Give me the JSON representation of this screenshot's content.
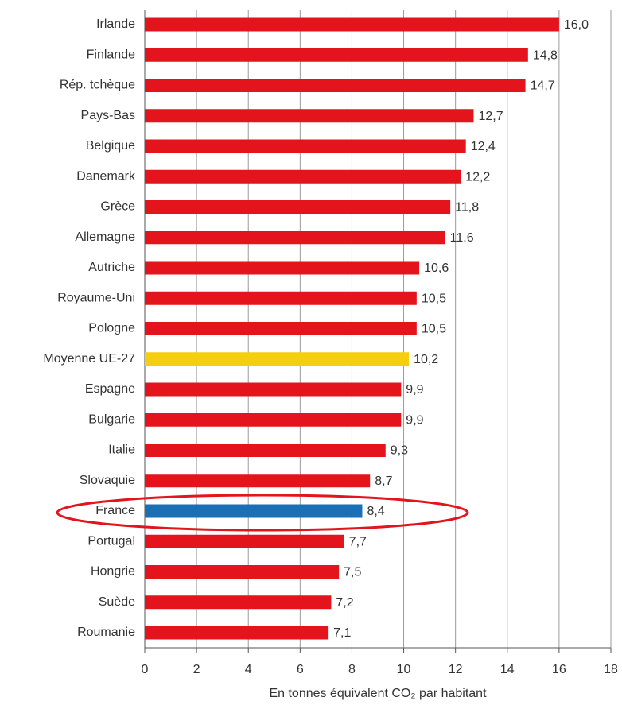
{
  "chart_data": {
    "type": "bar",
    "orientation": "horizontal",
    "xlabel": "En tonnes équivalent CO₂ par habitant",
    "categories": [
      "Irlande",
      "Finlande",
      "Rép. tchèque",
      "Pays-Bas",
      "Belgique",
      "Danemark",
      "Grèce",
      "Allemagne",
      "Autriche",
      "Royaume-Uni",
      "Pologne",
      "Moyenne UE-27",
      "Espagne",
      "Bulgarie",
      "Italie",
      "Slovaquie",
      "France",
      "Portugal",
      "Hongrie",
      "Suède",
      "Roumanie"
    ],
    "values": [
      16.0,
      14.8,
      14.7,
      12.7,
      12.4,
      12.2,
      11.8,
      11.6,
      10.6,
      10.5,
      10.5,
      10.2,
      9.9,
      9.9,
      9.3,
      8.7,
      8.4,
      7.7,
      7.5,
      7.2,
      7.1
    ],
    "value_labels": [
      "16,0",
      "14,8",
      "14,7",
      "12,7",
      "12,4",
      "12,2",
      "11,8",
      "11,6",
      "10,6",
      "10,5",
      "10,5",
      "10,2",
      "9,9",
      "9,9",
      "9,3",
      "8,7",
      "8,4",
      "7,7",
      "7,5",
      "7,2",
      "7,1"
    ],
    "colors": [
      "#e3141b",
      "#e3141b",
      "#e3141b",
      "#e3141b",
      "#e3141b",
      "#e3141b",
      "#e3141b",
      "#e3141b",
      "#e3141b",
      "#e3141b",
      "#e3141b",
      "#f5cf0f",
      "#e3141b",
      "#e3141b",
      "#e3141b",
      "#e3141b",
      "#1a6fb5",
      "#e3141b",
      "#e3141b",
      "#e3141b",
      "#e3141b"
    ],
    "xlim": [
      0,
      18
    ],
    "xticks": [
      0,
      2,
      4,
      6,
      8,
      10,
      12,
      14,
      16,
      18
    ],
    "grid": true
  }
}
